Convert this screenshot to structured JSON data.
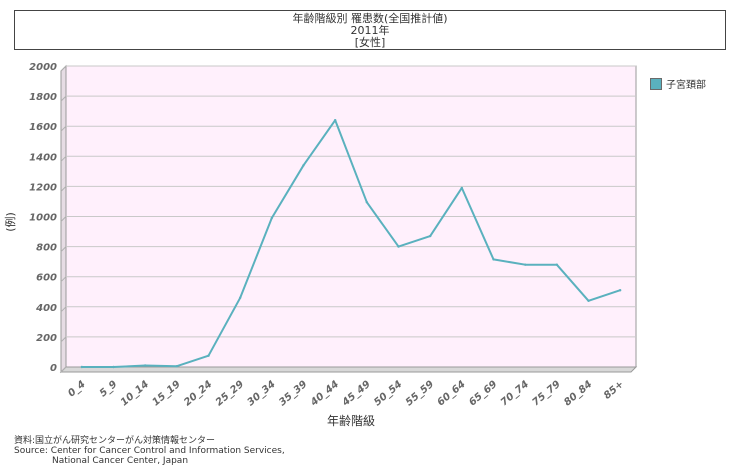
{
  "header": {
    "title_line1": "年齢階級別 罹患数(全国推計値)",
    "title_line2": "2011年",
    "title_line3": "[女性]"
  },
  "colors": {
    "plot_bg": "#fff0fc",
    "series": "#5ab1be",
    "grid": "#c9c9c9"
  },
  "chart_data": {
    "type": "line",
    "xlabel": "年齢階級",
    "ylabel": "(例)",
    "ylim": [
      0,
      2000
    ],
    "yticks": [
      0,
      200,
      400,
      600,
      800,
      1000,
      1200,
      1400,
      1600,
      1800,
      2000
    ],
    "grid": true,
    "legend_position": "right",
    "categories": [
      "0_4",
      "5_9",
      "10_14",
      "15_19",
      "20_24",
      "25_29",
      "30_34",
      "35_39",
      "40_44",
      "45_49",
      "50_54",
      "55_59",
      "60_64",
      "65_69",
      "70_74",
      "75_79",
      "80_84",
      "85+"
    ],
    "series": [
      {
        "name": "子宮頚部",
        "values": [
          0,
          0,
          10,
          5,
          75,
          460,
          990,
          1340,
          1640,
          1095,
          800,
          870,
          1190,
          715,
          680,
          680,
          440,
          510
        ]
      }
    ]
  },
  "footer": {
    "line1": "資料:国立がん研究センターがん対策情報センター",
    "line2": "Source: Center for Cancer Control and Information Services,",
    "line3": "National Cancer Center, Japan"
  }
}
